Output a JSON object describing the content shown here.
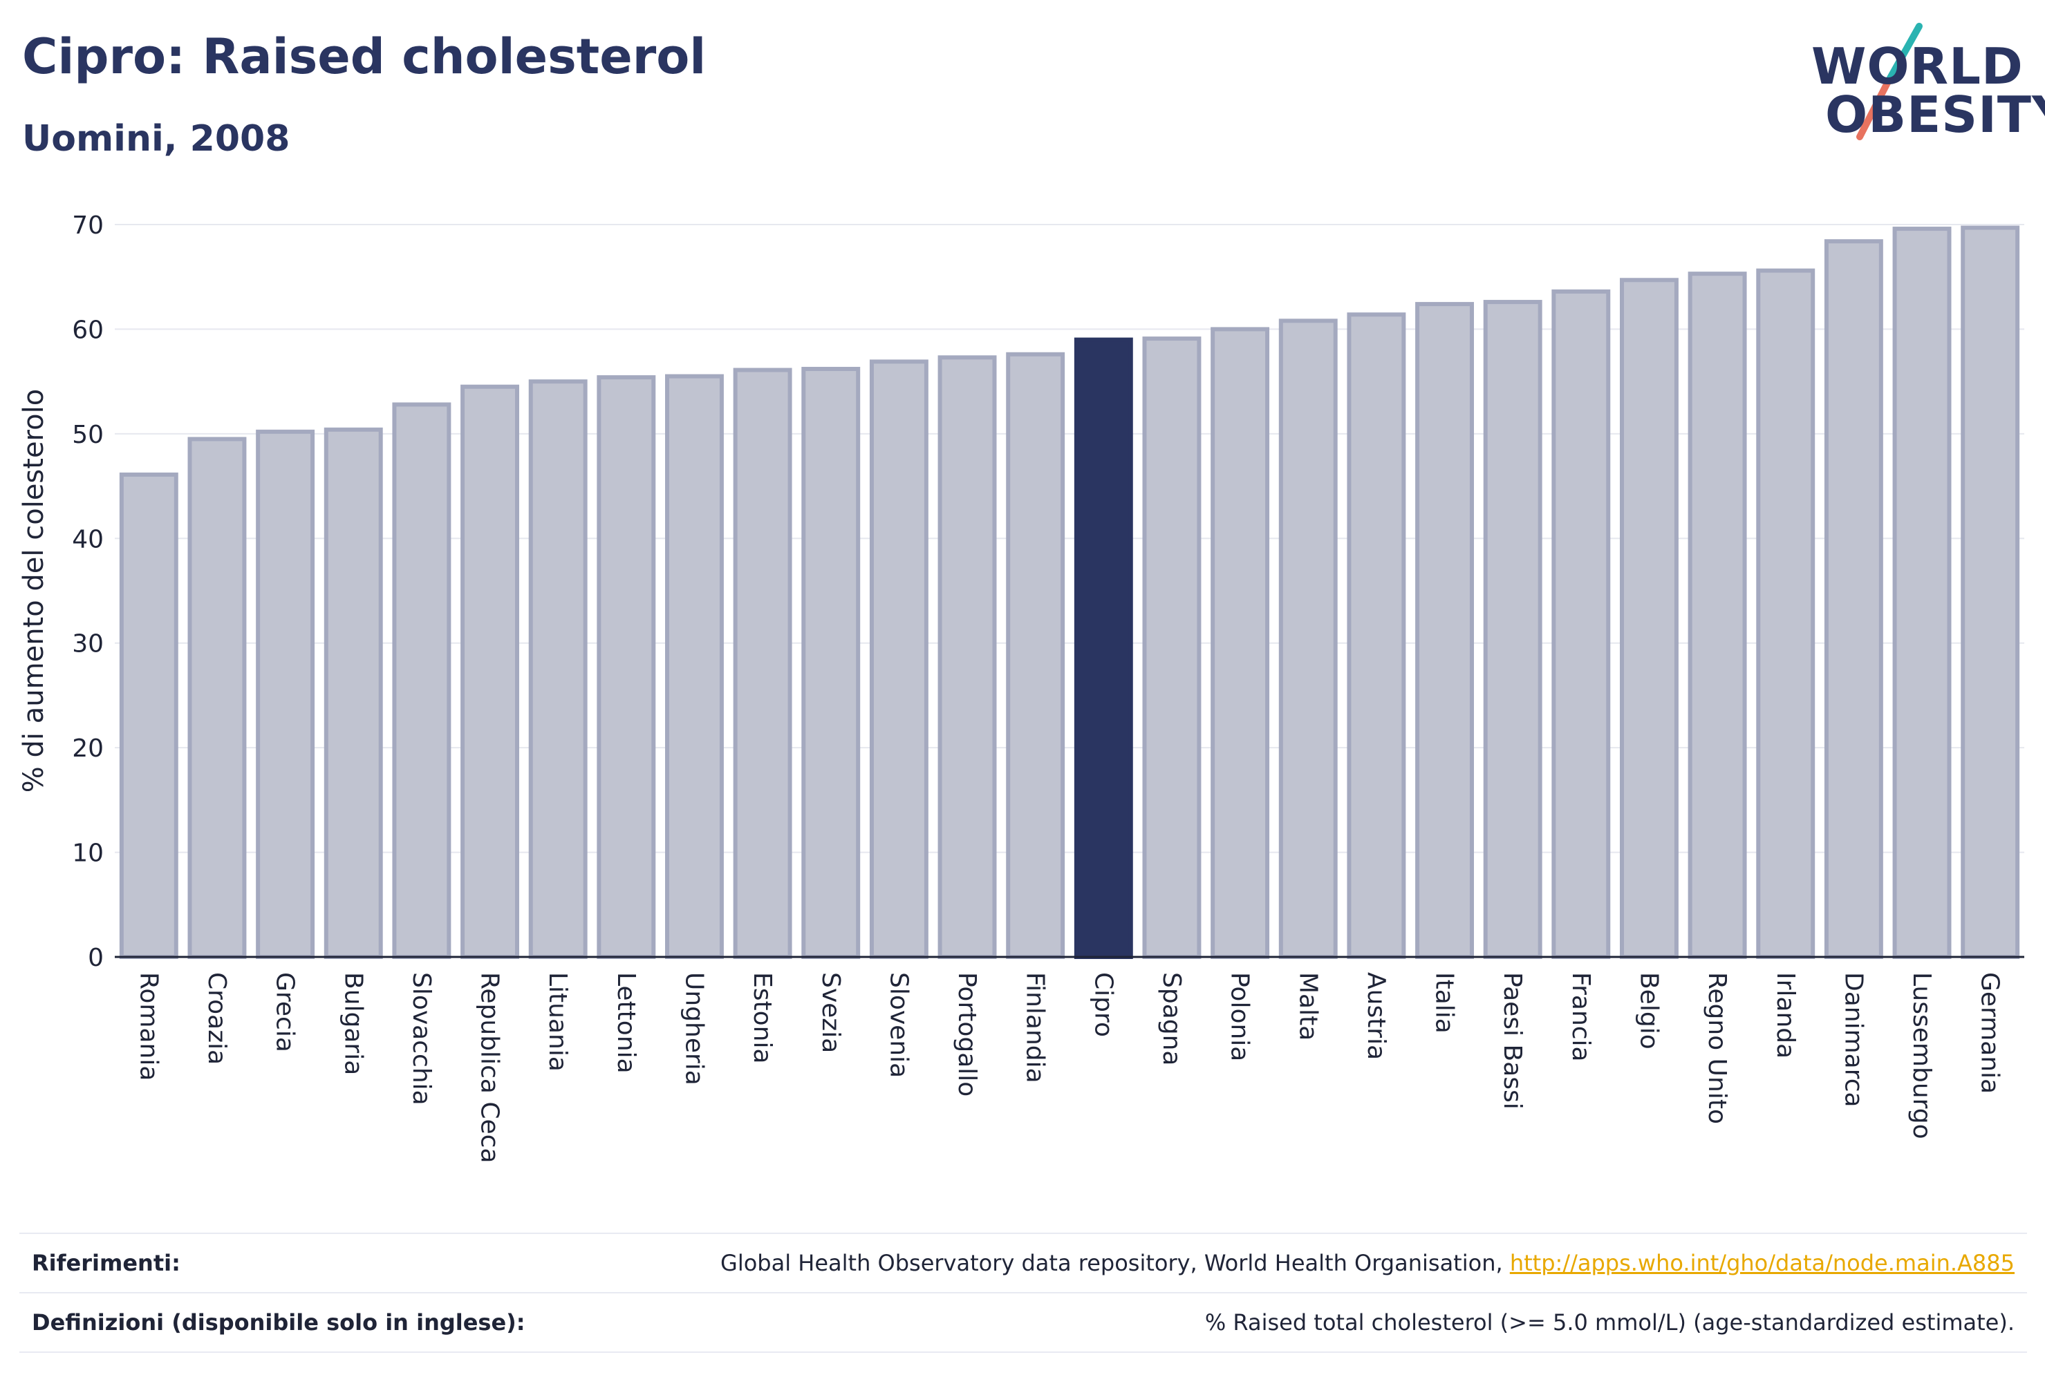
{
  "header": {
    "title": "Cipro: Raised cholesterol",
    "subtitle": "Uomini, 2008"
  },
  "logo": {
    "line1": "WORLD",
    "line2": "OBESITY",
    "accent_colors": [
      "#2ab3b1",
      "#e8735f"
    ]
  },
  "chart_data": {
    "type": "bar",
    "title": "Cipro: Raised cholesterol",
    "subtitle": "Uomini, 2008",
    "xlabel": "",
    "ylabel": "% di aumento del colesterolo",
    "ylim": [
      0,
      70
    ],
    "yticks": [
      0,
      10,
      20,
      30,
      40,
      50,
      60,
      70
    ],
    "grid": true,
    "highlight": "Cipro",
    "colors": {
      "default_fill": "#c0c3d0",
      "default_stroke": "#a4a9bf",
      "highlight": "#2a3561"
    },
    "categories": [
      "Romania",
      "Croazia",
      "Grecia",
      "Bulgaria",
      "Slovacchia",
      "Republica Ceca",
      "Lituania",
      "Lettonia",
      "Ungheria",
      "Estonia",
      "Svezia",
      "Slovenia",
      "Portogallo",
      "Finlandia",
      "Cipro",
      "Spagna",
      "Polonia",
      "Malta",
      "Austria",
      "Italia",
      "Paesi Bassi",
      "Francia",
      "Belgio",
      "Regno Unito",
      "Irlanda",
      "Danimarca",
      "Lussemburgo",
      "Germania"
    ],
    "values": [
      46.1,
      49.5,
      50.2,
      50.4,
      52.8,
      54.5,
      55.0,
      55.4,
      55.5,
      56.1,
      56.2,
      56.9,
      57.3,
      57.6,
      59.0,
      59.1,
      60.0,
      60.8,
      61.4,
      62.4,
      62.6,
      63.6,
      64.7,
      65.3,
      65.6,
      68.4,
      69.6,
      69.7
    ]
  },
  "references": [
    {
      "label": "Riferimenti:",
      "text": "Global Health Observatory data repository, World Health Organisation, ",
      "link": "http://apps.who.int/gho/data/node.main.A885"
    },
    {
      "label": "Definizioni (disponibile solo in inglese):",
      "text": "% Raised total cholesterol (>= 5.0 mmol/L) (age-standardized estimate).",
      "link": ""
    }
  ]
}
